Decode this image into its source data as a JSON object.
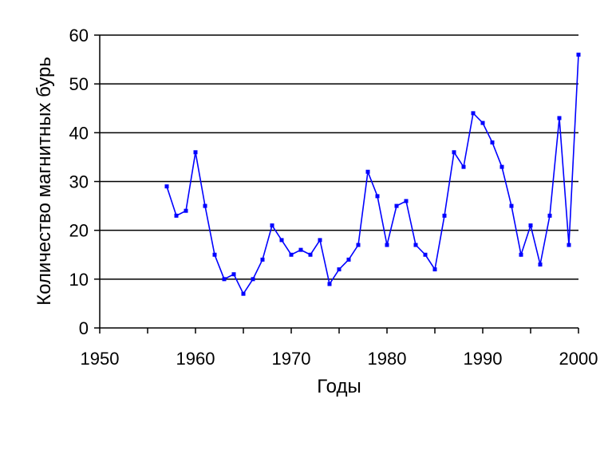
{
  "chart_data": {
    "type": "line",
    "title": "",
    "xlabel": "Годы",
    "ylabel": "Количество магнитных бурь",
    "xlim": [
      1950,
      2000
    ],
    "ylim": [
      0,
      60
    ],
    "x_ticks": [
      "1950",
      "1960",
      "1970",
      "1980",
      "1990",
      "2000"
    ],
    "y_ticks": [
      "0",
      "10",
      "20",
      "30",
      "40",
      "50",
      "60"
    ],
    "grid": "horizontal",
    "legend": "none",
    "series": [
      {
        "color": "#0000ff",
        "marker": "square",
        "points": [
          [
            1957,
            29
          ],
          [
            1958,
            23
          ],
          [
            1959,
            24
          ],
          [
            1960,
            36
          ],
          [
            1961,
            25
          ],
          [
            1962,
            15
          ],
          [
            1963,
            10
          ],
          [
            1964,
            11
          ],
          [
            1965,
            7
          ],
          [
            1966,
            10
          ],
          [
            1967,
            14
          ],
          [
            1968,
            21
          ],
          [
            1969,
            18
          ],
          [
            1970,
            15
          ],
          [
            1971,
            16
          ],
          [
            1972,
            15
          ],
          [
            1973,
            18
          ],
          [
            1974,
            9
          ],
          [
            1975,
            12
          ],
          [
            1976,
            14
          ],
          [
            1977,
            17
          ],
          [
            1978,
            32
          ],
          [
            1979,
            27
          ],
          [
            1980,
            17
          ],
          [
            1981,
            25
          ],
          [
            1982,
            26
          ],
          [
            1983,
            17
          ],
          [
            1984,
            15
          ],
          [
            1985,
            12
          ],
          [
            1986,
            23
          ],
          [
            1987,
            36
          ],
          [
            1988,
            33
          ],
          [
            1989,
            44
          ],
          [
            1990,
            42
          ],
          [
            1991,
            38
          ],
          [
            1992,
            33
          ],
          [
            1993,
            25
          ],
          [
            1994,
            15
          ],
          [
            1995,
            21
          ],
          [
            1996,
            13
          ],
          [
            1997,
            23
          ],
          [
            1998,
            43
          ],
          [
            1999,
            17
          ],
          [
            2000,
            56
          ]
        ]
      }
    ]
  }
}
